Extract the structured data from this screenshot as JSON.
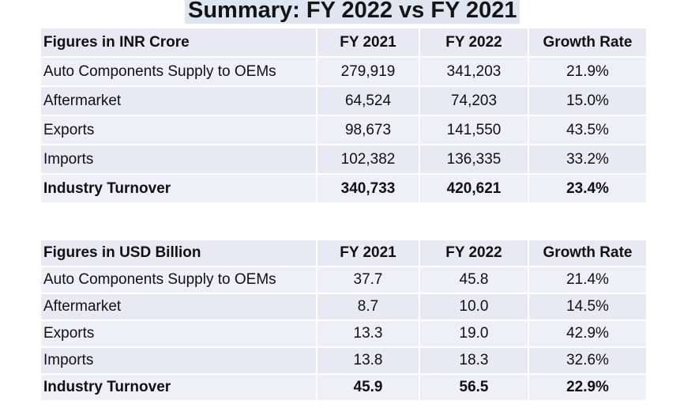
{
  "title": "Summary: FY 2022 vs FY 2021",
  "inr_table": {
    "headers": [
      "Figures in INR Crore",
      "FY 2021",
      "FY 2022",
      "Growth Rate"
    ],
    "rows": [
      [
        "Auto Components Supply to OEMs",
        "279,919",
        "341,203",
        "21.9%"
      ],
      [
        "Aftermarket",
        "64,524",
        "74,203",
        "15.0%"
      ],
      [
        "Exports",
        "98,673",
        "141,550",
        "43.5%"
      ],
      [
        "Imports",
        "102,382",
        "136,335",
        "33.2%"
      ],
      [
        "Industry Turnover",
        "340,733",
        "420,621",
        "23.4%"
      ]
    ]
  },
  "usd_table": {
    "headers": [
      "Figures in USD Billion",
      "FY 2021",
      "FY 2022",
      "Growth Rate"
    ],
    "rows": [
      [
        "Auto Components Supply to OEMs",
        "37.7",
        "45.8",
        "21.4%"
      ],
      [
        "Aftermarket",
        "8.7",
        "10.0",
        "14.5%"
      ],
      [
        "Exports",
        "13.3",
        "19.0",
        "42.9%"
      ],
      [
        "Imports",
        "13.8",
        "18.3",
        "32.6%"
      ],
      [
        "Industry Turnover",
        "45.9",
        "56.5",
        "22.9%"
      ]
    ]
  }
}
